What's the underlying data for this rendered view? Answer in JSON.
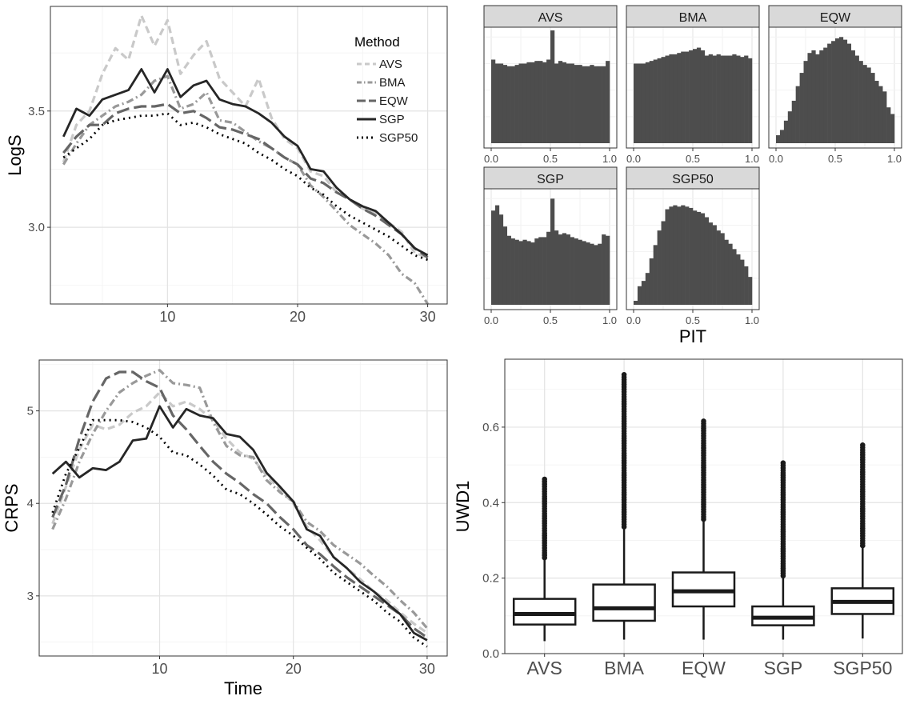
{
  "colors": {
    "ink": "#2b2b2b",
    "grid": "#ebebeb",
    "strip": "#d9d9d9",
    "bar": "#4d4d4d",
    "AVS": "#c9c9c9",
    "BMA": "#999999",
    "EQW": "#666666",
    "SGP": "#262626",
    "SGP50": "#000000"
  },
  "chart_data": [
    {
      "id": "logs",
      "type": "line",
      "ylabel": "LogS",
      "xlabel": "",
      "xlim": [
        1,
        31.5
      ],
      "ylim": [
        2.67,
        3.95
      ],
      "xticks": [
        10,
        20,
        30
      ],
      "yticks": [
        3.0,
        3.5
      ],
      "ytick_labels": [
        "3.0",
        "3.5"
      ],
      "legend_title": "Method",
      "legend": [
        "AVS",
        "BMA",
        "EQW",
        "SGP",
        "SGP50"
      ],
      "x": [
        2,
        3,
        4,
        5,
        6,
        7,
        8,
        9,
        10,
        11,
        12,
        13,
        14,
        15,
        16,
        17,
        18,
        19,
        20,
        21,
        22,
        23,
        24,
        25,
        26,
        27,
        28,
        29,
        30
      ],
      "series": [
        {
          "name": "AVS",
          "values": [
            3.28,
            3.44,
            3.5,
            3.66,
            3.77,
            3.72,
            3.91,
            3.78,
            3.89,
            3.66,
            3.74,
            3.8,
            3.64,
            3.58,
            3.52,
            3.64,
            3.47,
            3.38,
            3.34,
            3.24,
            3.22,
            3.15,
            3.12,
            3.08,
            3.06,
            3.02,
            2.98,
            2.89,
            2.87
          ]
        },
        {
          "name": "BMA",
          "values": [
            3.27,
            3.36,
            3.44,
            3.48,
            3.52,
            3.54,
            3.57,
            3.63,
            3.65,
            3.51,
            3.53,
            3.58,
            3.46,
            3.45,
            3.41,
            3.37,
            3.34,
            3.3,
            3.27,
            3.18,
            3.13,
            3.07,
            3.01,
            2.97,
            2.93,
            2.88,
            2.8,
            2.76,
            2.67
          ]
        },
        {
          "name": "EQW",
          "values": [
            3.32,
            3.39,
            3.44,
            3.44,
            3.49,
            3.51,
            3.52,
            3.52,
            3.53,
            3.49,
            3.5,
            3.47,
            3.43,
            3.42,
            3.4,
            3.38,
            3.34,
            3.3,
            3.27,
            3.21,
            3.19,
            3.15,
            3.12,
            3.08,
            3.05,
            3.01,
            2.97,
            2.91,
            2.87
          ]
        },
        {
          "name": "SGP",
          "values": [
            3.39,
            3.51,
            3.48,
            3.55,
            3.57,
            3.59,
            3.68,
            3.58,
            3.68,
            3.56,
            3.61,
            3.63,
            3.55,
            3.53,
            3.52,
            3.49,
            3.45,
            3.39,
            3.35,
            3.25,
            3.24,
            3.17,
            3.12,
            3.09,
            3.07,
            3.02,
            2.97,
            2.91,
            2.88
          ]
        },
        {
          "name": "SGP50",
          "values": [
            3.3,
            3.34,
            3.38,
            3.44,
            3.46,
            3.47,
            3.48,
            3.48,
            3.49,
            3.44,
            3.45,
            3.43,
            3.4,
            3.38,
            3.36,
            3.32,
            3.29,
            3.25,
            3.22,
            3.17,
            3.14,
            3.09,
            3.05,
            3.02,
            2.99,
            2.96,
            2.92,
            2.88,
            2.86
          ]
        }
      ]
    },
    {
      "id": "crps",
      "type": "line",
      "ylabel": "CRPS",
      "xlabel": "Time",
      "xlim": [
        1,
        31.5
      ],
      "ylim": [
        2.35,
        5.55
      ],
      "xticks": [
        10,
        20,
        30
      ],
      "yticks": [
        3,
        4,
        5
      ],
      "ytick_labels": [
        "3",
        "4",
        "5"
      ],
      "x": [
        2,
        3,
        4,
        5,
        6,
        7,
        8,
        9,
        10,
        11,
        12,
        13,
        14,
        15,
        16,
        17,
        18,
        19,
        20,
        21,
        22,
        23,
        24,
        25,
        26,
        27,
        28,
        29,
        30
      ],
      "series": [
        {
          "name": "AVS",
          "values": [
            3.78,
            4.18,
            4.58,
            4.85,
            4.8,
            4.85,
            4.98,
            5.05,
            5.2,
            5.05,
            5.1,
            5.02,
            4.9,
            4.7,
            4.55,
            4.48,
            4.3,
            4.15,
            4.0,
            3.75,
            3.6,
            3.42,
            3.3,
            3.18,
            3.05,
            2.95,
            2.82,
            2.7,
            2.6
          ]
        },
        {
          "name": "BMA",
          "values": [
            3.72,
            4.05,
            4.45,
            4.75,
            5.0,
            5.2,
            5.3,
            5.38,
            5.44,
            5.3,
            5.28,
            5.25,
            4.88,
            4.62,
            4.52,
            4.5,
            4.25,
            4.12,
            4.02,
            3.8,
            3.7,
            3.55,
            3.45,
            3.35,
            3.22,
            3.1,
            2.95,
            2.82,
            2.65
          ]
        },
        {
          "name": "EQW",
          "values": [
            3.85,
            4.2,
            4.7,
            5.1,
            5.35,
            5.42,
            5.42,
            5.32,
            5.25,
            4.95,
            4.8,
            4.62,
            4.45,
            4.32,
            4.22,
            4.1,
            4.0,
            3.85,
            3.72,
            3.55,
            3.45,
            3.32,
            3.2,
            3.1,
            3.0,
            2.9,
            2.8,
            2.65,
            2.55
          ]
        },
        {
          "name": "SGP",
          "values": [
            4.32,
            4.45,
            4.28,
            4.38,
            4.36,
            4.45,
            4.68,
            4.7,
            5.05,
            4.82,
            5.02,
            4.95,
            4.92,
            4.75,
            4.72,
            4.58,
            4.33,
            4.18,
            4.02,
            3.72,
            3.65,
            3.42,
            3.3,
            3.15,
            3.05,
            2.92,
            2.8,
            2.6,
            2.52
          ]
        },
        {
          "name": "SGP50",
          "values": [
            3.9,
            4.32,
            4.6,
            4.9,
            4.9,
            4.9,
            4.88,
            4.82,
            4.72,
            4.55,
            4.52,
            4.42,
            4.3,
            4.15,
            4.1,
            4.0,
            3.88,
            3.75,
            3.65,
            3.52,
            3.4,
            3.25,
            3.15,
            3.05,
            2.95,
            2.82,
            2.72,
            2.55,
            2.45
          ]
        }
      ]
    },
    {
      "id": "pit",
      "type": "bar",
      "subtype": "histogram-facets",
      "xlabel": "PIT",
      "xticks": [
        0,
        0.5,
        1
      ],
      "xtick_labels": [
        "0.0",
        "0.5",
        "1.0"
      ],
      "ymax": 8.5,
      "panels": [
        {
          "name": "AVS",
          "values": [
            6.3,
            6.0,
            6.0,
            5.9,
            5.8,
            5.8,
            5.9,
            6.0,
            6.0,
            6.1,
            6.1,
            6.2,
            6.2,
            6.1,
            6.3,
            8.5,
            6.0,
            6.2,
            6.1,
            6.0,
            6.0,
            5.9,
            5.9,
            5.8,
            5.8,
            5.9,
            5.8,
            5.8,
            5.8,
            6.2
          ]
        },
        {
          "name": "BMA",
          "values": [
            6.0,
            6.0,
            6.0,
            6.1,
            6.2,
            6.3,
            6.4,
            6.5,
            6.6,
            6.7,
            6.7,
            6.8,
            6.9,
            6.9,
            7.0,
            7.1,
            7.2,
            7.0,
            6.6,
            6.7,
            6.6,
            6.7,
            6.6,
            6.6,
            6.6,
            6.7,
            6.6,
            6.5,
            6.6,
            6.4
          ]
        },
        {
          "name": "EQW",
          "values": [
            0.6,
            1.0,
            1.7,
            2.4,
            3.2,
            4.3,
            5.3,
            6.2,
            6.8,
            7.0,
            6.7,
            7.0,
            7.2,
            7.5,
            7.7,
            7.9,
            8.0,
            7.8,
            7.5,
            7.0,
            6.6,
            6.2,
            5.9,
            5.7,
            5.3,
            4.7,
            4.3,
            3.9,
            2.7,
            2.2
          ]
        },
        {
          "name": "SGP",
          "values": [
            7.1,
            7.5,
            6.8,
            5.9,
            5.2,
            5.0,
            4.9,
            4.8,
            4.9,
            4.8,
            4.7,
            5.0,
            5.1,
            5.1,
            5.5,
            8.0,
            5.6,
            5.3,
            5.4,
            5.3,
            5.1,
            5.0,
            4.9,
            4.8,
            4.7,
            4.6,
            4.5,
            4.6,
            5.3,
            5.2
          ]
        },
        {
          "name": "SGP50",
          "values": [
            0.3,
            1.4,
            1.8,
            2.4,
            3.5,
            4.5,
            5.6,
            6.3,
            7.2,
            7.4,
            7.5,
            7.4,
            7.5,
            7.4,
            7.3,
            7.1,
            7.0,
            6.9,
            6.6,
            6.2,
            6.0,
            5.6,
            5.4,
            4.9,
            4.6,
            4.2,
            3.8,
            3.4,
            2.9,
            2.1
          ]
        }
      ]
    },
    {
      "id": "uwd1",
      "type": "box",
      "ylabel": "UWD1",
      "ylim": [
        0,
        0.78
      ],
      "yticks": [
        0.0,
        0.2,
        0.4,
        0.6
      ],
      "ytick_labels": [
        "0.0",
        "0.2",
        "0.4",
        "0.6"
      ],
      "categories": [
        "AVS",
        "BMA",
        "EQW",
        "SGP",
        "SGP50"
      ],
      "boxes": [
        {
          "name": "AVS",
          "whisker_low": 0.033,
          "q1": 0.077,
          "median": 0.105,
          "q3": 0.145,
          "whisker_high": 0.248,
          "outlier_max": 0.465
        },
        {
          "name": "BMA",
          "whisker_low": 0.037,
          "q1": 0.087,
          "median": 0.12,
          "q3": 0.183,
          "whisker_high": 0.33,
          "outlier_max": 0.745
        },
        {
          "name": "EQW",
          "whisker_low": 0.037,
          "q1": 0.125,
          "median": 0.165,
          "q3": 0.215,
          "whisker_high": 0.35,
          "outlier_max": 0.617
        },
        {
          "name": "SGP",
          "whisker_low": 0.037,
          "q1": 0.075,
          "median": 0.095,
          "q3": 0.125,
          "whisker_high": 0.2,
          "outlier_max": 0.505
        },
        {
          "name": "SGP50",
          "whisker_low": 0.04,
          "q1": 0.105,
          "median": 0.137,
          "q3": 0.173,
          "whisker_high": 0.28,
          "outlier_max": 0.553
        }
      ]
    }
  ]
}
